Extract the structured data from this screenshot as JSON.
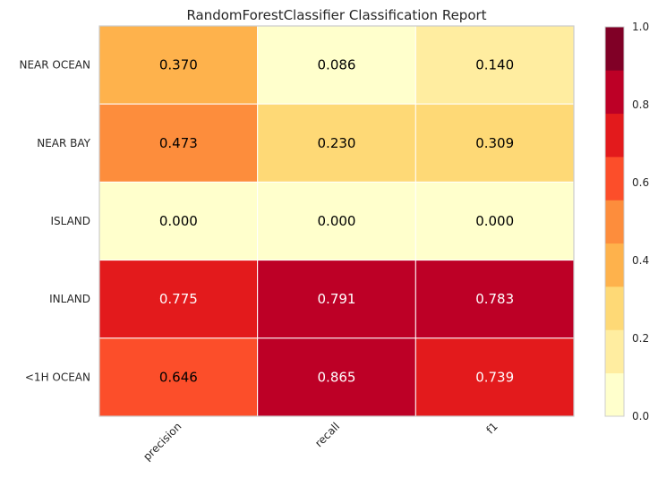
{
  "chart_data": {
    "type": "heatmap",
    "title": "RandomForestClassifier Classification Report",
    "columns": [
      "precision",
      "recall",
      "f1"
    ],
    "rows": [
      "NEAR OCEAN",
      "NEAR BAY",
      "ISLAND",
      "INLAND",
      "<1H OCEAN"
    ],
    "values": [
      [
        0.37,
        0.086,
        0.14
      ],
      [
        0.473,
        0.23,
        0.309
      ],
      [
        0.0,
        0.0,
        0.0
      ],
      [
        0.775,
        0.791,
        0.783
      ],
      [
        0.646,
        0.865,
        0.739
      ]
    ],
    "colorbar": {
      "range": [
        0.0,
        1.0
      ],
      "ticks": [
        "0.0",
        "0.2",
        "0.4",
        "0.6",
        "0.8",
        "1.0"
      ],
      "bins": 9,
      "colors": [
        "#ffffcc",
        "#ffeda0",
        "#fed976",
        "#feb24c",
        "#fd8d3c",
        "#fc4e2a",
        "#e31a1c",
        "#bd0026",
        "#800026"
      ]
    },
    "grid": true
  }
}
